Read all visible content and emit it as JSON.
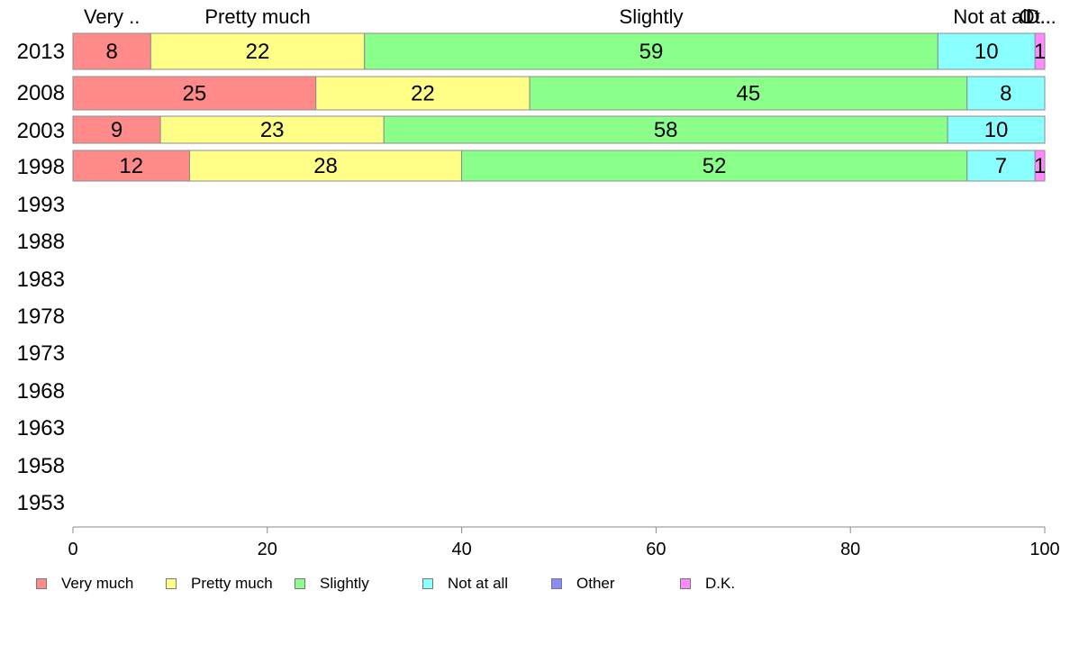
{
  "chart_data": {
    "type": "bar",
    "orientation": "horizontal",
    "stacked": true,
    "xlim": [
      0,
      100
    ],
    "x_ticks": [
      "0",
      "20",
      "40",
      "60",
      "80",
      "100"
    ],
    "categories": [
      "2013",
      "2008",
      "2003",
      "1998",
      "1993",
      "1988",
      "1983",
      "1978",
      "1973",
      "1968",
      "1963",
      "1958",
      "1953"
    ],
    "top_labels": [
      "Very ..",
      "Pretty much",
      "Slightly",
      "Not at all",
      "Ot..",
      "D..."
    ],
    "series": [
      {
        "name": "Very much",
        "color": "#ff8a8a",
        "values": [
          8,
          25,
          9,
          12,
          null,
          null,
          null,
          null,
          null,
          null,
          null,
          null,
          null
        ]
      },
      {
        "name": "Pretty much",
        "color": "#ffff88",
        "values": [
          22,
          22,
          23,
          28,
          null,
          null,
          null,
          null,
          null,
          null,
          null,
          null,
          null
        ]
      },
      {
        "name": "Slightly",
        "color": "#8aff8a",
        "values": [
          59,
          45,
          58,
          52,
          null,
          null,
          null,
          null,
          null,
          null,
          null,
          null,
          null
        ]
      },
      {
        "name": "Not at all",
        "color": "#8affff",
        "values": [
          10,
          8,
          10,
          7,
          null,
          null,
          null,
          null,
          null,
          null,
          null,
          null,
          null
        ]
      },
      {
        "name": "Other",
        "color": "#8a8aff",
        "values": [
          0,
          0,
          0,
          0,
          null,
          null,
          null,
          null,
          null,
          null,
          null,
          null,
          null
        ]
      },
      {
        "name": "D.K.",
        "color": "#ff8aff",
        "values": [
          1,
          0,
          0,
          1,
          null,
          null,
          null,
          null,
          null,
          null,
          null,
          null,
          null
        ]
      }
    ],
    "legend_position": "bottom",
    "grid": false
  }
}
